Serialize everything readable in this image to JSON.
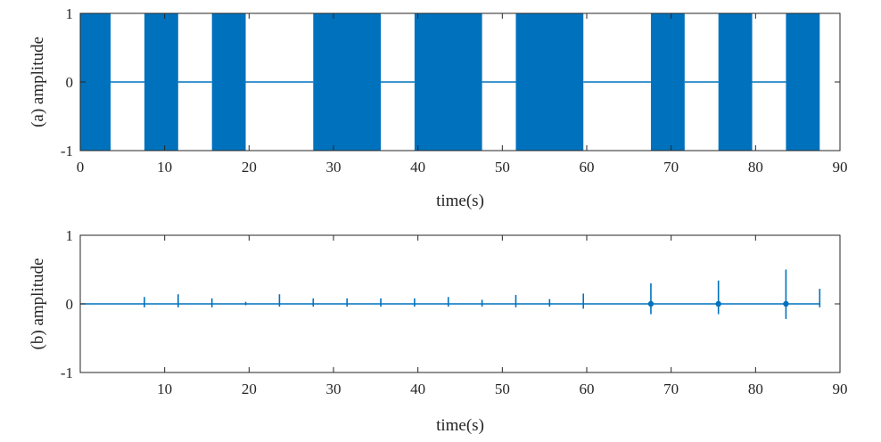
{
  "chart_data": [
    {
      "type": "area",
      "panel_id": "a",
      "ylabel": "(a) amplitude",
      "xlabel": "time(s)",
      "xlim": [
        0,
        90
      ],
      "ylim": [
        -1,
        1
      ],
      "xticks": [
        "0",
        "10",
        "20",
        "30",
        "40",
        "50",
        "60",
        "70",
        "80",
        "90"
      ],
      "yticks": [
        "1",
        "0",
        "-1"
      ],
      "color": "#0072BD",
      "series": [
        {
          "segments": [
            {
              "start": 0.0,
              "end": 3.6,
              "amplitude": 1
            },
            {
              "start": 3.6,
              "end": 7.6,
              "amplitude": 0
            },
            {
              "start": 7.6,
              "end": 11.6,
              "amplitude": 1
            },
            {
              "start": 11.6,
              "end": 15.6,
              "amplitude": 0
            },
            {
              "start": 15.6,
              "end": 19.6,
              "amplitude": 1
            },
            {
              "start": 19.6,
              "end": 27.6,
              "amplitude": 0
            },
            {
              "start": 27.6,
              "end": 35.6,
              "amplitude": 1
            },
            {
              "start": 35.6,
              "end": 39.6,
              "amplitude": 0
            },
            {
              "start": 39.6,
              "end": 47.6,
              "amplitude": 1
            },
            {
              "start": 47.6,
              "end": 51.6,
              "amplitude": 0
            },
            {
              "start": 51.6,
              "end": 59.6,
              "amplitude": 1
            },
            {
              "start": 59.6,
              "end": 67.6,
              "amplitude": 0
            },
            {
              "start": 67.6,
              "end": 71.6,
              "amplitude": 1
            },
            {
              "start": 71.6,
              "end": 75.6,
              "amplitude": 0
            },
            {
              "start": 75.6,
              "end": 79.6,
              "amplitude": 1
            },
            {
              "start": 79.6,
              "end": 83.6,
              "amplitude": 0
            },
            {
              "start": 83.6,
              "end": 87.6,
              "amplitude": 1
            }
          ]
        }
      ]
    },
    {
      "type": "line",
      "panel_id": "b",
      "ylabel": "(b) amplitude",
      "xlabel": "time(s)",
      "xlim": [
        0,
        90
      ],
      "ylim": [
        -1,
        1
      ],
      "xticks": [
        "10",
        "20",
        "30",
        "40",
        "50",
        "60",
        "70",
        "80",
        "90"
      ],
      "yticks": [
        "1",
        "0",
        "-1"
      ],
      "color": "#0072BD",
      "series": [
        {
          "baseline": 0,
          "x_end": 87.6,
          "spikes": [
            {
              "x": 7.6,
              "max": 0.1,
              "min": -0.05
            },
            {
              "x": 11.6,
              "max": 0.14,
              "min": -0.05
            },
            {
              "x": 15.6,
              "max": 0.08,
              "min": -0.05
            },
            {
              "x": 19.6,
              "max": 0.03,
              "min": -0.02
            },
            {
              "x": 23.6,
              "max": 0.14,
              "min": -0.04
            },
            {
              "x": 27.6,
              "max": 0.08,
              "min": -0.04
            },
            {
              "x": 31.6,
              "max": 0.08,
              "min": -0.04
            },
            {
              "x": 35.6,
              "max": 0.08,
              "min": -0.04
            },
            {
              "x": 39.6,
              "max": 0.08,
              "min": -0.04
            },
            {
              "x": 43.6,
              "max": 0.1,
              "min": -0.04
            },
            {
              "x": 47.6,
              "max": 0.06,
              "min": -0.04
            },
            {
              "x": 51.6,
              "max": 0.13,
              "min": -0.05
            },
            {
              "x": 55.6,
              "max": 0.07,
              "min": -0.04
            },
            {
              "x": 59.6,
              "max": 0.15,
              "min": -0.07
            },
            {
              "x": 67.6,
              "max": 0.3,
              "min": -0.15
            },
            {
              "x": 75.6,
              "max": 0.34,
              "min": -0.15
            },
            {
              "x": 83.6,
              "max": 0.5,
              "min": -0.22
            },
            {
              "x": 87.6,
              "max": 0.22,
              "min": -0.05
            }
          ]
        }
      ]
    }
  ]
}
